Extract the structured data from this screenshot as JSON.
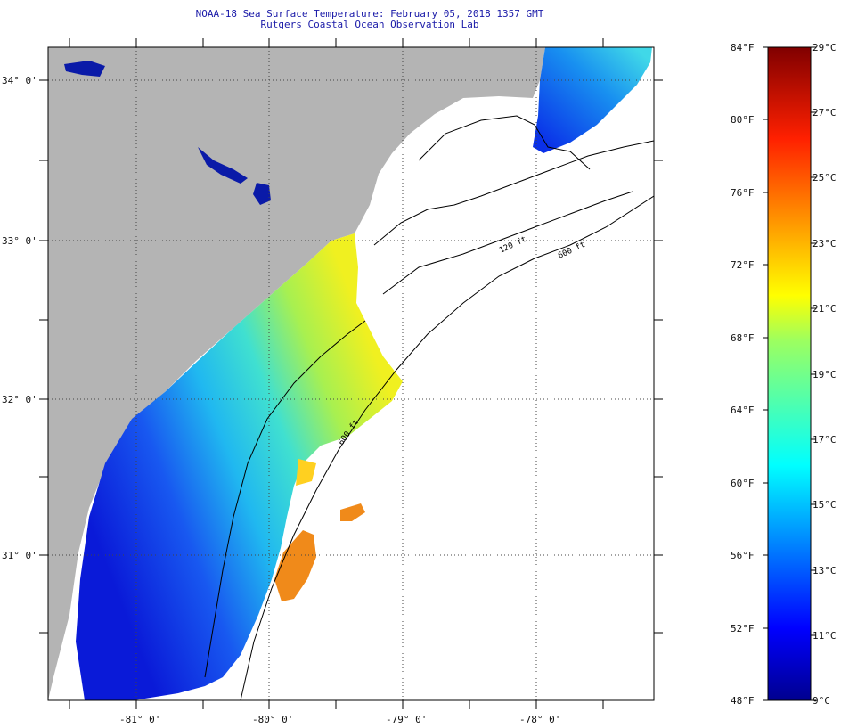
{
  "header": {
    "title": "NOAA-18 Sea Surface Temperature:  February 05, 2018 1357 GMT",
    "subtitle": "Rutgers Coastal Ocean Observation Lab"
  },
  "map": {
    "lat_labels": [
      "34° 0'",
      "33° 0'",
      "32° 0'",
      "31° 0'"
    ],
    "lon_labels": [
      "-81° 0'",
      "-80° 0'",
      "-79° 0'",
      "-78° 0'"
    ],
    "contour_labels": [
      "120 ft",
      "600 ft",
      "600 ft"
    ],
    "colors": {
      "land": "#b4b4b4",
      "no_data": "#ffffff",
      "contour": "#000000"
    }
  },
  "colorbar": {
    "fahrenheit_labels": [
      "84°F",
      "80°F",
      "76°F",
      "72°F",
      "68°F",
      "64°F",
      "60°F",
      "56°F",
      "52°F",
      "48°F"
    ],
    "celsius_labels": [
      "29°C",
      "27°C",
      "25°C",
      "23°C",
      "21°C",
      "19°C",
      "17°C",
      "15°C",
      "13°C",
      "11°C",
      "9°C"
    ],
    "range_f": [
      48,
      84
    ],
    "range_c": [
      9,
      29
    ]
  }
}
